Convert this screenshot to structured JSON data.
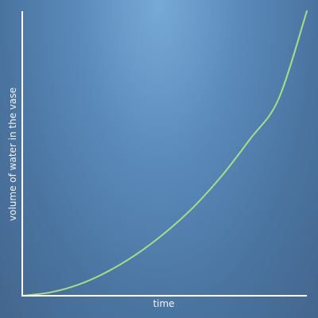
{
  "chart_data": {
    "type": "line",
    "title": "",
    "xlabel": "time",
    "ylabel": "volume of water in the vase",
    "xlim": [
      0,
      1
    ],
    "ylim": [
      0,
      1
    ],
    "grid": false,
    "series": [
      {
        "color": "#a6dc8a",
        "x": [
          0,
          0.1,
          0.2,
          0.3,
          0.4,
          0.5,
          0.6,
          0.7,
          0.8,
          0.9,
          1.0
        ],
        "y": [
          0,
          0.012,
          0.04,
          0.085,
          0.145,
          0.22,
          0.31,
          0.42,
          0.55,
          0.69,
          1.0
        ]
      }
    ]
  }
}
